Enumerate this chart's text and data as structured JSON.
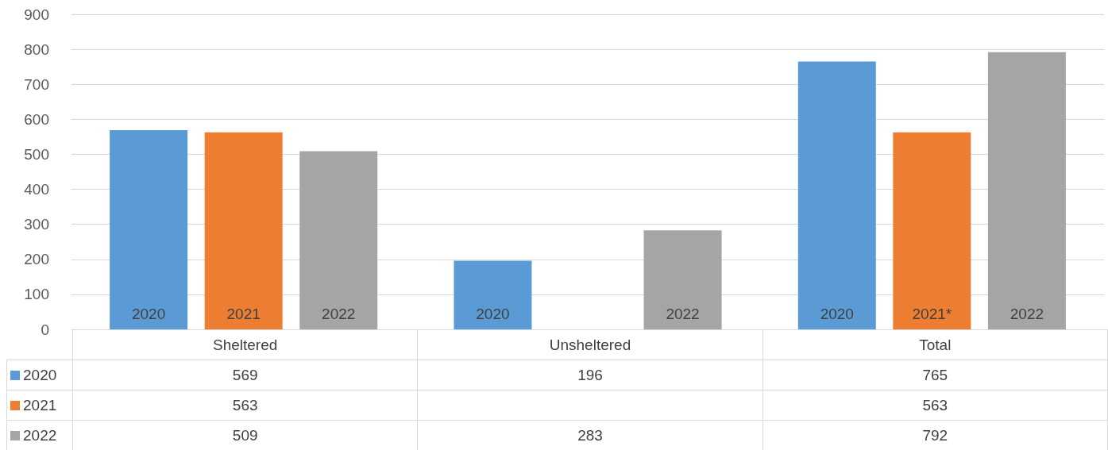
{
  "chart_data": {
    "type": "bar",
    "categories": [
      "Sheltered",
      "Unsheltered",
      "Total"
    ],
    "series": [
      {
        "name": "2020",
        "color": "#5b9bd5",
        "values": [
          569,
          196,
          765
        ]
      },
      {
        "name": "2021",
        "color": "#ed7d31",
        "values": [
          563,
          null,
          563
        ]
      },
      {
        "name": "2022",
        "color": "#a5a5a5",
        "values": [
          509,
          283,
          792
        ]
      }
    ],
    "annotations": [
      "2021*"
    ],
    "ylim": [
      0,
      900
    ],
    "yticks": [
      0,
      100,
      200,
      300,
      400,
      500,
      600,
      700,
      800,
      900
    ],
    "grid": "y",
    "legend": "bottom",
    "data_labels": true
  }
}
